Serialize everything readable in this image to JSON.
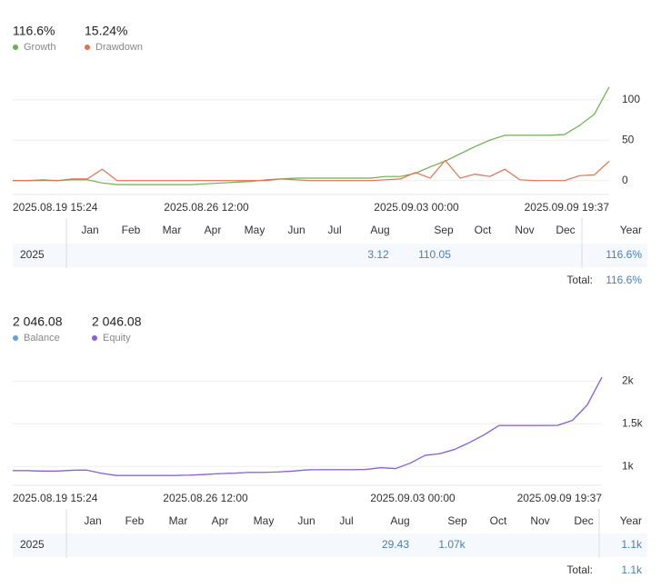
{
  "chart_data": [
    {
      "type": "line",
      "series": [
        {
          "name": "Growth",
          "color": "#6ab04c",
          "total": "116.6%",
          "values": [
            0,
            0,
            0,
            0,
            1,
            1,
            -3,
            -5,
            -5,
            -5,
            -5,
            -5,
            -5,
            -4,
            -3,
            -2,
            -1,
            1,
            2,
            3,
            3,
            3,
            3,
            3,
            3,
            5,
            5,
            9,
            17,
            24,
            33,
            42,
            50,
            56,
            56,
            56,
            56,
            57,
            68,
            82,
            116
          ]
        },
        {
          "name": "Drawdown",
          "color": "#e8704f",
          "total": "15.24%",
          "values": [
            0,
            0,
            1,
            0,
            2,
            2,
            14,
            0,
            0,
            0,
            0,
            0,
            0,
            0,
            0,
            0,
            0,
            0,
            2,
            1,
            0,
            0,
            0,
            0,
            0,
            1,
            2,
            10,
            3,
            25,
            3,
            8,
            5,
            14,
            1,
            0,
            0,
            0,
            6,
            7,
            24
          ]
        }
      ],
      "ylim": [
        -15,
        120
      ],
      "yticks": [
        0,
        50,
        100
      ],
      "grid": true,
      "xtick_labels": [
        "2025.08.19 15:24",
        "2025.08.26 12:00",
        "2025.09.03 00:00",
        "2025.09.09 19:37"
      ],
      "table": {
        "columns": [
          "Jan",
          "Feb",
          "Mar",
          "Apr",
          "May",
          "Jun",
          "Jul",
          "Aug",
          "Sep",
          "Oct",
          "Nov",
          "Dec",
          "Year"
        ],
        "rows": [
          {
            "year": "2025",
            "months": [
              null,
              null,
              null,
              null,
              null,
              null,
              null,
              3.12,
              110.05,
              null,
              null,
              null
            ],
            "year_total": "116.6%"
          }
        ],
        "total_label": "Total:",
        "total": "116.6%"
      }
    },
    {
      "type": "line",
      "series": [
        {
          "name": "Balance",
          "color": "#5aa5e0",
          "total": "2 046.08",
          "values": [
            950,
            950,
            945,
            945,
            955,
            958,
            920,
            895,
            895,
            895,
            895,
            895,
            898,
            905,
            915,
            920,
            930,
            930,
            935,
            945,
            960,
            962,
            962,
            962,
            965,
            985,
            975,
            1040,
            1130,
            1150,
            1200,
            1280,
            1370,
            1480,
            1480,
            1480,
            1480,
            1482,
            1540,
            1720,
            2046.08
          ]
        },
        {
          "name": "Equity",
          "color": "#8e5be8",
          "total": "2 046.08",
          "values": [
            950,
            950,
            945,
            945,
            955,
            958,
            920,
            895,
            895,
            895,
            895,
            895,
            898,
            905,
            915,
            920,
            930,
            930,
            935,
            945,
            960,
            962,
            962,
            962,
            965,
            985,
            975,
            1040,
            1130,
            1150,
            1200,
            1280,
            1370,
            1480,
            1480,
            1480,
            1480,
            1482,
            1540,
            1720,
            2046.08
          ]
        }
      ],
      "ylim": [
        800,
        2100
      ],
      "yticks": [
        {
          "value": 1000,
          "label": "1k"
        },
        {
          "value": 1500,
          "label": "1.5k"
        },
        {
          "value": 2000,
          "label": "2k"
        }
      ],
      "grid": true,
      "xtick_labels": [
        "2025.08.19 15:24",
        "2025.08.26 12:00",
        "2025.09.03 00:00",
        "2025.09.09 19:37"
      ],
      "table": {
        "columns": [
          "Jan",
          "Feb",
          "Mar",
          "Apr",
          "May",
          "Jun",
          "Jul",
          "Aug",
          "Sep",
          "Oct",
          "Nov",
          "Dec",
          "Year"
        ],
        "rows": [
          {
            "year": "2025",
            "months": [
              null,
              null,
              null,
              null,
              null,
              null,
              null,
              29.43,
              "1.07k",
              null,
              null,
              null
            ],
            "year_total": "1.1k"
          }
        ],
        "total_label": "Total:",
        "total": "1.1k"
      }
    }
  ]
}
